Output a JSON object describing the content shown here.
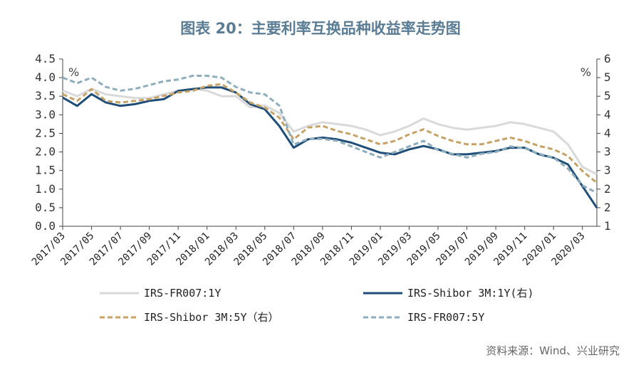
{
  "title": "图表 20：主要利率互换品种收益率走势图",
  "source": "资料来源：Wind、兴业研究",
  "chart_data": {
    "type": "line",
    "left_unit": "%",
    "right_unit": "%",
    "y_left": {
      "range": [
        0,
        4.5
      ],
      "ticks": [
        "4.5",
        "4.0",
        "3.5",
        "3.0",
        "2.5",
        "2.0",
        "1.5",
        "1.0",
        "0.5",
        "0.0"
      ]
    },
    "y_right": {
      "range": [
        1,
        6
      ],
      "ticks": [
        "6",
        "5",
        "5",
        "4",
        "4",
        "3",
        "3",
        "2",
        "2",
        "1"
      ]
    },
    "x_ticks": [
      "2017/03",
      "2017/05",
      "2017/07",
      "2017/09",
      "2017/11",
      "2018/01",
      "2018/03",
      "2018/05",
      "2018/07",
      "2018/09",
      "2018/11",
      "2019/01",
      "2019/03",
      "2019/05",
      "2019/07",
      "2019/09",
      "2019/11",
      "2020/01",
      "2020/03"
    ],
    "x_range": [
      "2017/03",
      "2020/04"
    ],
    "grid": false,
    "series": [
      {
        "name": "IRS-FR007:1Y",
        "axis": "left",
        "color": "#d9d9d9",
        "style": "solid",
        "points": [
          [
            "2017/03",
            3.65
          ],
          [
            "2017/04",
            3.5
          ],
          [
            "2017/05",
            3.7
          ],
          [
            "2017/06",
            3.55
          ],
          [
            "2017/07",
            3.5
          ],
          [
            "2017/08",
            3.45
          ],
          [
            "2017/09",
            3.45
          ],
          [
            "2017/10",
            3.55
          ],
          [
            "2017/11",
            3.65
          ],
          [
            "2017/12",
            3.7
          ],
          [
            "2018/01",
            3.65
          ],
          [
            "2018/02",
            3.5
          ],
          [
            "2018/03",
            3.5
          ],
          [
            "2018/04",
            3.2
          ],
          [
            "2018/05",
            3.25
          ],
          [
            "2018/06",
            3.05
          ],
          [
            "2018/07",
            2.55
          ],
          [
            "2018/08",
            2.7
          ],
          [
            "2018/09",
            2.8
          ],
          [
            "2018/10",
            2.75
          ],
          [
            "2018/11",
            2.7
          ],
          [
            "2018/12",
            2.6
          ],
          [
            "2019/01",
            2.45
          ],
          [
            "2019/02",
            2.55
          ],
          [
            "2019/03",
            2.7
          ],
          [
            "2019/04",
            2.9
          ],
          [
            "2019/05",
            2.75
          ],
          [
            "2019/06",
            2.65
          ],
          [
            "2019/07",
            2.6
          ],
          [
            "2019/08",
            2.65
          ],
          [
            "2019/09",
            2.7
          ],
          [
            "2019/10",
            2.8
          ],
          [
            "2019/11",
            2.75
          ],
          [
            "2019/12",
            2.65
          ],
          [
            "2020/01",
            2.55
          ],
          [
            "2020/02",
            2.2
          ],
          [
            "2020/03",
            1.6
          ],
          [
            "2020/04",
            1.4
          ]
        ]
      },
      {
        "name": "IRS-Shibor 3M:1Y(右)",
        "axis": "right",
        "color": "#1f4e79",
        "style": "solid",
        "points": [
          [
            "2017/03",
            4.85
          ],
          [
            "2017/04",
            4.6
          ],
          [
            "2017/05",
            4.95
          ],
          [
            "2017/06",
            4.7
          ],
          [
            "2017/07",
            4.6
          ],
          [
            "2017/08",
            4.65
          ],
          [
            "2017/09",
            4.75
          ],
          [
            "2017/10",
            4.8
          ],
          [
            "2017/11",
            5.05
          ],
          [
            "2017/12",
            5.1
          ],
          [
            "2018/01",
            5.15
          ],
          [
            "2018/02",
            5.15
          ],
          [
            "2018/03",
            5.0
          ],
          [
            "2018/04",
            4.65
          ],
          [
            "2018/05",
            4.5
          ],
          [
            "2018/06",
            4.0
          ],
          [
            "2018/07",
            3.35
          ],
          [
            "2018/08",
            3.6
          ],
          [
            "2018/09",
            3.65
          ],
          [
            "2018/10",
            3.6
          ],
          [
            "2018/11",
            3.5
          ],
          [
            "2018/12",
            3.35
          ],
          [
            "2019/01",
            3.2
          ],
          [
            "2019/02",
            3.15
          ],
          [
            "2019/03",
            3.3
          ],
          [
            "2019/04",
            3.4
          ],
          [
            "2019/05",
            3.3
          ],
          [
            "2019/06",
            3.15
          ],
          [
            "2019/07",
            3.15
          ],
          [
            "2019/08",
            3.2
          ],
          [
            "2019/09",
            3.25
          ],
          [
            "2019/10",
            3.35
          ],
          [
            "2019/11",
            3.35
          ],
          [
            "2019/12",
            3.15
          ],
          [
            "2020/01",
            3.05
          ],
          [
            "2020/02",
            2.85
          ],
          [
            "2020/03",
            2.2
          ],
          [
            "2020/04",
            1.55
          ]
        ]
      },
      {
        "name": "IRS-Shibor 3M:5Y（右）",
        "axis": "right",
        "color": "#c8a265",
        "style": "dashed",
        "points": [
          [
            "2017/03",
            4.95
          ],
          [
            "2017/04",
            4.75
          ],
          [
            "2017/05",
            5.1
          ],
          [
            "2017/06",
            4.75
          ],
          [
            "2017/07",
            4.7
          ],
          [
            "2017/08",
            4.75
          ],
          [
            "2017/09",
            4.8
          ],
          [
            "2017/10",
            4.9
          ],
          [
            "2017/11",
            5.0
          ],
          [
            "2017/12",
            5.05
          ],
          [
            "2018/01",
            5.2
          ],
          [
            "2018/02",
            5.25
          ],
          [
            "2018/03",
            5.0
          ],
          [
            "2018/04",
            4.7
          ],
          [
            "2018/05",
            4.55
          ],
          [
            "2018/06",
            4.25
          ],
          [
            "2018/07",
            3.6
          ],
          [
            "2018/08",
            3.95
          ],
          [
            "2018/09",
            4.0
          ],
          [
            "2018/10",
            3.85
          ],
          [
            "2018/11",
            3.75
          ],
          [
            "2018/12",
            3.6
          ],
          [
            "2019/01",
            3.45
          ],
          [
            "2019/02",
            3.55
          ],
          [
            "2019/03",
            3.75
          ],
          [
            "2019/04",
            3.9
          ],
          [
            "2019/05",
            3.7
          ],
          [
            "2019/06",
            3.55
          ],
          [
            "2019/07",
            3.45
          ],
          [
            "2019/08",
            3.45
          ],
          [
            "2019/09",
            3.55
          ],
          [
            "2019/10",
            3.65
          ],
          [
            "2019/11",
            3.55
          ],
          [
            "2019/12",
            3.4
          ],
          [
            "2020/01",
            3.3
          ],
          [
            "2020/02",
            3.1
          ],
          [
            "2020/03",
            2.65
          ],
          [
            "2020/04",
            2.3
          ]
        ]
      },
      {
        "name": "IRS-FR007:5Y",
        "axis": "left",
        "color": "#8eaebd",
        "style": "dashed",
        "points": [
          [
            "2017/03",
            4.0
          ],
          [
            "2017/04",
            3.85
          ],
          [
            "2017/05",
            4.0
          ],
          [
            "2017/06",
            3.75
          ],
          [
            "2017/07",
            3.65
          ],
          [
            "2017/08",
            3.7
          ],
          [
            "2017/09",
            3.8
          ],
          [
            "2017/10",
            3.9
          ],
          [
            "2017/11",
            3.95
          ],
          [
            "2017/12",
            4.05
          ],
          [
            "2018/01",
            4.05
          ],
          [
            "2018/02",
            4.0
          ],
          [
            "2018/03",
            3.75
          ],
          [
            "2018/04",
            3.6
          ],
          [
            "2018/05",
            3.55
          ],
          [
            "2018/06",
            3.25
          ],
          [
            "2018/07",
            2.2
          ],
          [
            "2018/08",
            2.35
          ],
          [
            "2018/09",
            2.35
          ],
          [
            "2018/10",
            2.3
          ],
          [
            "2018/11",
            2.15
          ],
          [
            "2018/12",
            2.0
          ],
          [
            "2019/01",
            1.85
          ],
          [
            "2019/02",
            2.0
          ],
          [
            "2019/03",
            2.15
          ],
          [
            "2019/04",
            2.3
          ],
          [
            "2019/05",
            2.05
          ],
          [
            "2019/06",
            1.95
          ],
          [
            "2019/07",
            1.85
          ],
          [
            "2019/08",
            1.95
          ],
          [
            "2019/09",
            2.0
          ],
          [
            "2019/10",
            2.15
          ],
          [
            "2019/11",
            2.1
          ],
          [
            "2019/12",
            1.95
          ],
          [
            "2020/01",
            1.85
          ],
          [
            "2020/02",
            1.55
          ],
          [
            "2020/03",
            1.1
          ],
          [
            "2020/04",
            0.9
          ]
        ]
      }
    ]
  }
}
